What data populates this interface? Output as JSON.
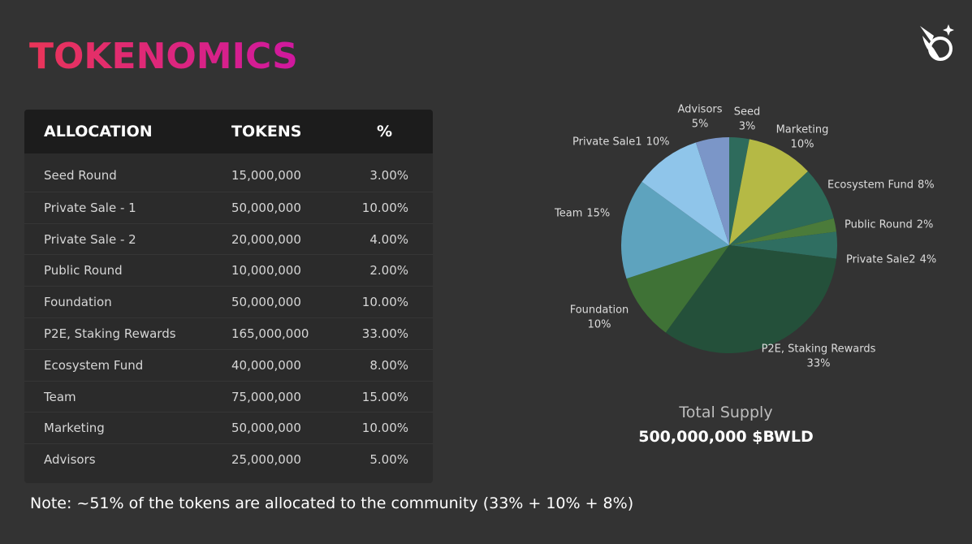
{
  "title": "TOKENOMICS",
  "table": {
    "header": [
      "ALLOCATION",
      "TOKENS",
      "%"
    ],
    "rows": [
      [
        "Seed Round",
        "15,000,000",
        "3.00%"
      ],
      [
        "Private Sale - 1",
        "50,000,000",
        "10.00%"
      ],
      [
        "Private Sale - 2",
        "20,000,000",
        "4.00%"
      ],
      [
        "Public Round",
        "10,000,000",
        "2.00%"
      ],
      [
        "Foundation",
        "50,000,000",
        "10.00%"
      ],
      [
        "P2E, Staking Rewards",
        "165,000,000",
        "33.00%"
      ],
      [
        "Ecosystem Fund",
        "40,000,000",
        "8.00%"
      ],
      [
        "Team",
        "75,000,000",
        "15.00%"
      ],
      [
        "Marketing",
        "50,000,000",
        "10.00%"
      ],
      [
        "Advisors",
        "25,000,000",
        "5.00%"
      ]
    ]
  },
  "chart_data": {
    "type": "pie",
    "categories": [
      "Seed",
      "Marketing",
      "Ecosystem Fund",
      "Public Round",
      "Private Sale2",
      "P2E, Staking Rewards",
      "Foundation",
      "Team",
      "Private Sale1",
      "Advisors"
    ],
    "values": [
      3,
      10,
      8,
      2,
      4,
      33,
      10,
      15,
      10,
      5
    ],
    "value_labels": [
      "3%",
      "10%",
      "8%",
      "2%",
      "4%",
      "33%",
      "10%",
      "15%",
      "10%",
      "5%"
    ],
    "colors": [
      "#2e6b5c",
      "#b5b945",
      "#2d6a58",
      "#4b7b3a",
      "#2f6e61",
      "#24503a",
      "#3f7236",
      "#5ea3be",
      "#8fc5ea",
      "#7b96c8"
    ]
  },
  "total_supply": {
    "label": "Total Supply",
    "value": "500,000,000 $BWLD"
  },
  "note": "Note: ~51% of the tokens are allocated to the community (33% + 10% + 8%)"
}
